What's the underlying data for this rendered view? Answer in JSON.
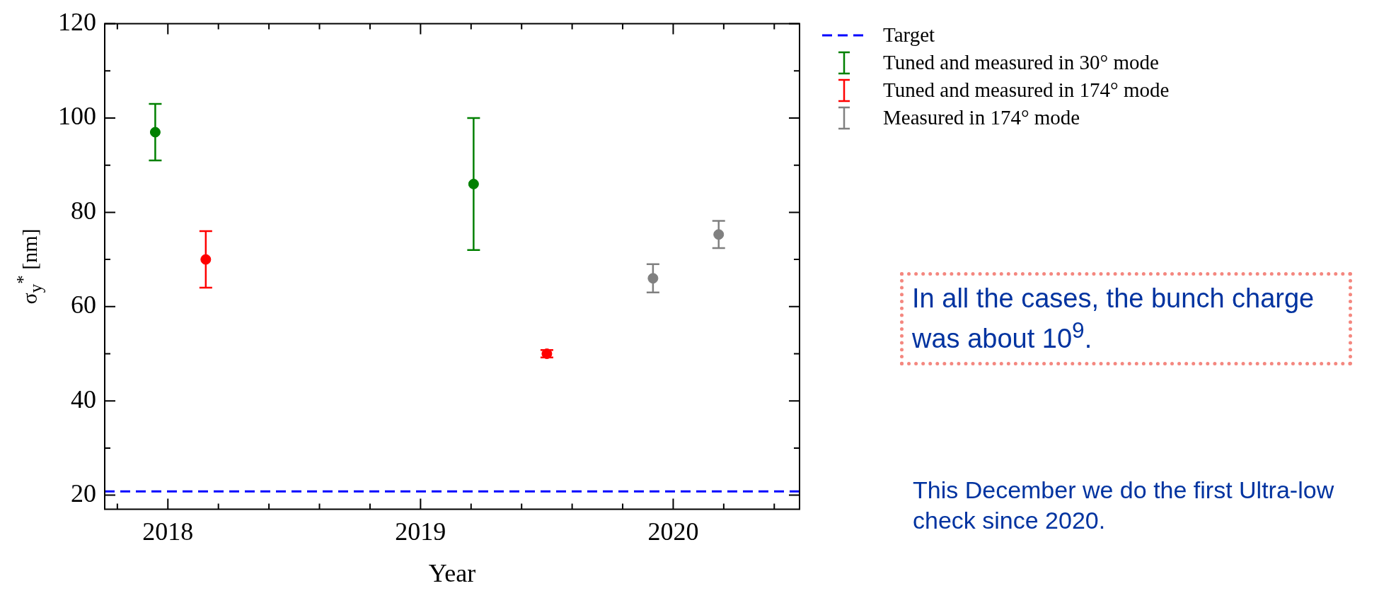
{
  "chart_data": {
    "type": "scatter",
    "xlabel": "Year",
    "ylabel": "σ$_{y}$$^{*}$ [nm]",
    "xlim": [
      2017.75,
      2020.5
    ],
    "xticks": [
      {
        "value": 2017.8,
        "label": null
      },
      2018,
      {
        "value": 2018.2,
        "label": null
      },
      {
        "value": 2018.4,
        "label": null
      },
      {
        "value": 2018.6,
        "label": null
      },
      {
        "value": 2018.8,
        "label": null
      },
      2019,
      {
        "value": 2019.2,
        "label": null
      },
      {
        "value": 2019.4,
        "label": null
      },
      {
        "value": 2019.6,
        "label": null
      },
      {
        "value": 2019.8,
        "label": null
      },
      2020,
      {
        "value": 2020.2,
        "label": null
      },
      {
        "value": 2020.4,
        "label": null
      }
    ],
    "ylim": [
      17,
      120
    ],
    "yticks": [
      20,
      {
        "value": 30,
        "label": null
      },
      40,
      {
        "value": 50,
        "label": null
      },
      60,
      {
        "value": 70,
        "label": null
      },
      80,
      {
        "value": 90,
        "label": null
      },
      100,
      {
        "value": 110,
        "label": null
      },
      120
    ],
    "series": [
      {
        "name": "Tuned and measured in 30° mode",
        "color": "#008000",
        "x": [
          2017.95,
          2019.21
        ],
        "values": [
          97,
          86
        ],
        "errors": [
          6,
          14
        ]
      },
      {
        "name": "Tuned and measured in 174° mode",
        "color": "#ff0000",
        "x": [
          2018.15,
          2019.5
        ],
        "values": [
          70,
          50
        ],
        "errors": [
          6,
          0.8
        ]
      },
      {
        "name": "Measured in 174° mode",
        "color": "#808080",
        "x": [
          2019.92,
          2020.18
        ],
        "values": [
          66,
          75.3
        ],
        "errors": [
          3,
          2.9
        ]
      }
    ],
    "ref_lines": [
      {
        "axis": "y",
        "value": 20.8,
        "label": "Target",
        "color": "#0000ff",
        "line_style": "dashed"
      }
    ],
    "annotations": [
      "In all the cases, the bunch charge was about 10$^{9}$.",
      "This December we do the first Ultra-low check since 2020."
    ],
    "legend": "top right",
    "grid": false,
    "marker": "circle"
  }
}
